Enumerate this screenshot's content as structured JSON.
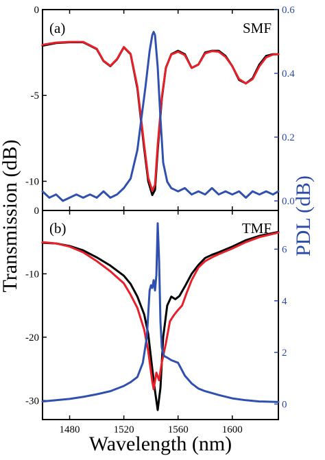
{
  "colors": {
    "smf_transmission_black": "#000000",
    "tmf_transmission_red": "#e8202a",
    "pdl": "#3050b0",
    "right_axis": "#2a4aa8"
  },
  "labels": {
    "ylabel_left": "Transmission (dB)",
    "ylabel_right": "PDL (dB)",
    "xlabel": "Wavelength (nm)"
  },
  "chart_data": [
    {
      "type": "line",
      "panel": "(a)",
      "fiber": "SMF",
      "xlim": [
        1460,
        1634
      ],
      "ylim": [
        -11.7,
        0
      ],
      "y2lim": [
        -0.03,
        0.6
      ],
      "xticks": [
        1480,
        1520,
        1560,
        1600
      ],
      "yticks": [
        0,
        -5,
        -10
      ],
      "y2ticks": [
        0.0,
        0.2,
        0.4,
        0.6
      ],
      "y2tick_labels": [
        "0.0",
        "0.2",
        "0.4",
        "0.6"
      ],
      "series": [
        {
          "axis": "left",
          "color": "#000000",
          "x": [
            1460,
            1470,
            1480,
            1490,
            1500,
            1505,
            1510,
            1515,
            1520,
            1525,
            1530,
            1535,
            1538,
            1541,
            1543,
            1545,
            1548,
            1551,
            1555,
            1560,
            1565,
            1570,
            1575,
            1580,
            1585,
            1590,
            1595,
            1600,
            1605,
            1610,
            1615,
            1620,
            1625,
            1630,
            1634
          ],
          "y": [
            -2.1,
            -1.95,
            -1.9,
            -1.9,
            -2.3,
            -3.0,
            -3.3,
            -2.9,
            -2.2,
            -2.6,
            -4.6,
            -8.1,
            -10.0,
            -10.8,
            -10.5,
            -8.2,
            -5.2,
            -3.4,
            -2.6,
            -2.4,
            -2.6,
            -3.4,
            -3.2,
            -2.5,
            -2.4,
            -2.4,
            -2.7,
            -3.3,
            -4.1,
            -4.3,
            -4.0,
            -3.2,
            -2.7,
            -2.6,
            -2.6
          ]
        },
        {
          "axis": "left",
          "color": "#e8202a",
          "x": [
            1460,
            1470,
            1480,
            1490,
            1500,
            1505,
            1510,
            1515,
            1520,
            1525,
            1530,
            1535,
            1538,
            1541,
            1543,
            1545,
            1548,
            1551,
            1555,
            1560,
            1565,
            1570,
            1575,
            1580,
            1585,
            1590,
            1595,
            1600,
            1605,
            1610,
            1615,
            1620,
            1625,
            1630,
            1634
          ],
          "y": [
            -2.05,
            -1.92,
            -1.88,
            -1.88,
            -2.28,
            -2.98,
            -3.28,
            -2.88,
            -2.18,
            -2.58,
            -4.5,
            -7.9,
            -9.8,
            -10.55,
            -10.2,
            -7.9,
            -5.1,
            -3.4,
            -2.62,
            -2.45,
            -2.65,
            -3.4,
            -3.2,
            -2.55,
            -2.42,
            -2.45,
            -2.75,
            -3.3,
            -4.05,
            -4.3,
            -4.05,
            -3.3,
            -2.78,
            -2.62,
            -2.6
          ]
        },
        {
          "axis": "right",
          "color": "#3050b0",
          "x": [
            1460,
            1465,
            1470,
            1475,
            1480,
            1485,
            1490,
            1495,
            1500,
            1505,
            1510,
            1515,
            1520,
            1525,
            1530,
            1533,
            1536,
            1539,
            1541,
            1542,
            1543,
            1545,
            1547,
            1549,
            1552,
            1555,
            1560,
            1565,
            1570,
            1575,
            1580,
            1585,
            1590,
            1595,
            1600,
            1605,
            1610,
            1615,
            1620,
            1625,
            1630,
            1634
          ],
          "y": [
            0.03,
            0.01,
            0.02,
            0.0,
            0.01,
            0.02,
            0.01,
            0.02,
            0.01,
            0.03,
            0.01,
            0.02,
            0.04,
            0.07,
            0.16,
            0.26,
            0.36,
            0.47,
            0.52,
            0.53,
            0.52,
            0.42,
            0.26,
            0.12,
            0.06,
            0.04,
            0.03,
            0.04,
            0.02,
            0.03,
            0.02,
            0.04,
            0.02,
            0.03,
            0.02,
            0.03,
            0.01,
            0.03,
            0.02,
            0.03,
            0.02,
            0.03
          ]
        }
      ]
    },
    {
      "type": "line",
      "panel": "(b)",
      "fiber": "TMF",
      "xlim": [
        1460,
        1634
      ],
      "ylim": [
        -33,
        0
      ],
      "y2lim": [
        -0.6,
        7.5
      ],
      "xticks": [
        1480,
        1520,
        1560,
        1600
      ],
      "yticks": [
        0,
        -10,
        -20,
        -30
      ],
      "y2ticks": [
        0,
        2,
        4,
        6
      ],
      "y2tick_labels": [
        "0",
        "2",
        "4",
        "6"
      ],
      "series": [
        {
          "axis": "left",
          "color": "#000000",
          "x": [
            1460,
            1470,
            1480,
            1490,
            1500,
            1510,
            1520,
            1525,
            1530,
            1535,
            1538,
            1541,
            1543,
            1545,
            1547,
            1549,
            1552,
            1555,
            1558,
            1561,
            1565,
            1570,
            1575,
            1580,
            1585,
            1590,
            1600,
            1610,
            1620,
            1634
          ],
          "y": [
            -5.1,
            -5.2,
            -5.6,
            -6.3,
            -7.4,
            -8.7,
            -10.3,
            -11.6,
            -13.6,
            -16.4,
            -19.5,
            -25.0,
            -28.5,
            -31.5,
            -28.0,
            -20.0,
            -15.0,
            -13.6,
            -14.0,
            -13.5,
            -12.0,
            -10.0,
            -8.6,
            -7.5,
            -7.0,
            -6.6,
            -5.7,
            -4.7,
            -4.0,
            -3.4
          ]
        },
        {
          "axis": "left",
          "color": "#e8202a",
          "x": [
            1460,
            1470,
            1480,
            1490,
            1500,
            1510,
            1520,
            1525,
            1530,
            1535,
            1538,
            1541,
            1542,
            1544,
            1546,
            1548,
            1551,
            1554,
            1557,
            1560,
            1563,
            1566,
            1570,
            1575,
            1580,
            1585,
            1590,
            1600,
            1610,
            1620,
            1634
          ],
          "y": [
            -5.0,
            -5.2,
            -5.7,
            -6.6,
            -8.0,
            -9.6,
            -11.5,
            -13.3,
            -15.4,
            -18.8,
            -22.2,
            -27.0,
            -28.2,
            -25.6,
            -26.8,
            -24.0,
            -21.0,
            -17.5,
            -16.5,
            -15.7,
            -15.0,
            -13.2,
            -11.0,
            -9.0,
            -8.0,
            -7.4,
            -6.9,
            -6.0,
            -5.0,
            -4.2,
            -3.5
          ]
        },
        {
          "axis": "right",
          "color": "#3050b0",
          "x": [
            1460,
            1470,
            1480,
            1490,
            1500,
            1510,
            1520,
            1525,
            1530,
            1534,
            1537,
            1539,
            1540,
            1541,
            1542,
            1543,
            1544,
            1545,
            1546,
            1547,
            1548,
            1549,
            1550,
            1552,
            1555,
            1560,
            1565,
            1570,
            1575,
            1580,
            1590,
            1600,
            1610,
            1620,
            1634
          ],
          "y": [
            0.1,
            0.15,
            0.2,
            0.28,
            0.38,
            0.5,
            0.7,
            0.85,
            1.05,
            1.6,
            2.6,
            4.4,
            4.6,
            4.5,
            4.8,
            4.4,
            5.0,
            7.0,
            5.6,
            3.2,
            2.2,
            1.95,
            1.85,
            1.8,
            1.7,
            1.6,
            1.1,
            0.8,
            0.6,
            0.5,
            0.35,
            0.22,
            0.15,
            0.1,
            0.08
          ]
        }
      ]
    }
  ]
}
